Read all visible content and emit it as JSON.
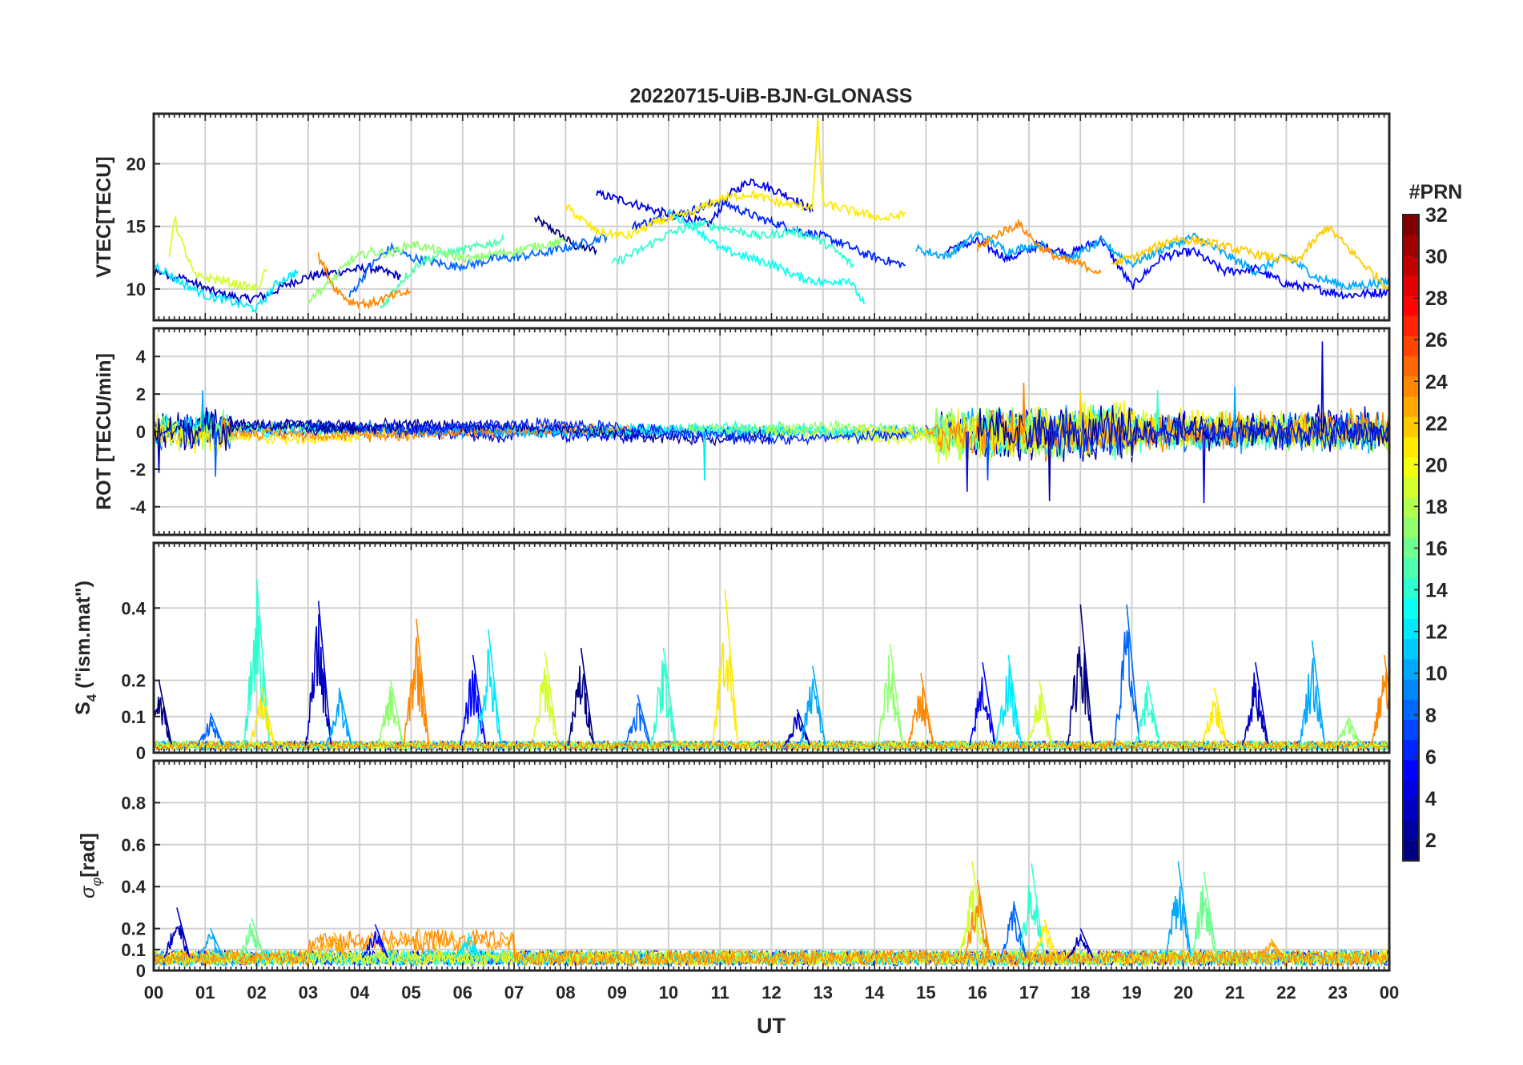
{
  "chart_data": [
    {
      "type": "line",
      "panel": "vtec",
      "title": "20220715-UiB-BJN-GLONASS",
      "ylabel": "VTEC[TECU]",
      "xlabel": "",
      "xlim": [
        0,
        24
      ],
      "ylim": [
        7.5,
        24
      ],
      "yticks": [
        10,
        15,
        20
      ],
      "grid": true,
      "series": [
        {
          "prn": 1,
          "x": [
            7.4,
            7.8,
            8.2,
            8.6
          ],
          "y": [
            15.6,
            14.6,
            13.4,
            13.1
          ]
        },
        {
          "prn": 3,
          "x": [
            0.0,
            0.6,
            1.2,
            1.8,
            2.2,
            2.6,
            3.0,
            3.6,
            4.2,
            4.8
          ],
          "y": [
            11.5,
            10.8,
            9.7,
            9.2,
            9.5,
            10.4,
            11.0,
            11.4,
            11.7,
            11.0
          ]
        },
        {
          "prn": 4,
          "x": [
            8.6,
            9.2,
            9.8,
            10.4,
            10.8,
            11.2,
            11.6,
            12.0,
            12.4,
            12.8
          ],
          "y": [
            17.6,
            17.0,
            16.2,
            15.6,
            15.2,
            17.6,
            18.7,
            18.0,
            17.3,
            16.2
          ]
        },
        {
          "prn": 5,
          "x": [
            15.4,
            16.0,
            16.6,
            17.2,
            17.8,
            18.4,
            19.0,
            19.6,
            20.2,
            20.8,
            21.4,
            22.0,
            22.6,
            23.2,
            24.0
          ],
          "y": [
            13.2,
            13.8,
            12.4,
            13.5,
            12.8,
            14.0,
            10.2,
            12.6,
            13.0,
            11.4,
            11.6,
            10.4,
            10.0,
            9.5,
            9.8
          ]
        },
        {
          "prn": 6,
          "x": [
            9.3,
            9.8,
            10.4,
            11.0,
            11.4,
            11.8,
            12.2,
            12.6,
            13.0,
            13.4,
            13.8,
            14.2,
            14.6
          ],
          "y": [
            15.0,
            15.6,
            16.2,
            17.0,
            16.3,
            15.6,
            15.1,
            14.6,
            14.2,
            13.6,
            12.8,
            12.3,
            11.9
          ]
        },
        {
          "prn": 8,
          "x": [
            3.8,
            4.2,
            4.6,
            5.0,
            5.4,
            5.8,
            6.2,
            6.6,
            7.0,
            7.6,
            8.2,
            8.8
          ],
          "y": [
            9.4,
            11.8,
            13.3,
            12.5,
            12.2,
            11.8,
            12.0,
            12.4,
            12.5,
            12.9,
            13.5,
            14.2
          ]
        },
        {
          "prn": 10,
          "x": [
            14.8,
            15.4,
            16.0,
            16.6,
            17.2,
            17.8,
            18.4,
            19.0,
            19.6,
            20.2,
            20.8,
            21.4,
            22.0,
            22.6,
            23.2,
            24.0
          ],
          "y": [
            13.2,
            12.6,
            14.4,
            13.0,
            13.6,
            12.4,
            13.8,
            12.0,
            13.2,
            14.2,
            12.8,
            11.4,
            12.6,
            10.9,
            10.2,
            10.6
          ]
        },
        {
          "prn": 12,
          "x": [
            0.0,
            0.5,
            1.0,
            1.5,
            2.0,
            2.4,
            2.8
          ],
          "y": [
            12.0,
            10.6,
            9.5,
            9.0,
            8.4,
            10.5,
            11.4
          ]
        },
        {
          "prn": 13,
          "x": [
            10.0,
            10.5,
            11.0,
            11.5,
            12.0,
            12.5,
            13.0,
            13.5,
            13.8
          ],
          "y": [
            16.0,
            15.0,
            13.2,
            12.6,
            12.0,
            11.0,
            10.5,
            10.8,
            8.8
          ]
        },
        {
          "prn": 14,
          "x": [
            8.9,
            9.4,
            10.0,
            10.6,
            11.2,
            11.8,
            12.4,
            12.8,
            13.2,
            13.6
          ],
          "y": [
            12.0,
            13.0,
            14.4,
            15.2,
            14.8,
            14.2,
            14.6,
            14.2,
            13.2,
            11.8
          ]
        },
        {
          "prn": 15,
          "x": [
            4.4,
            4.8,
            5.2,
            5.6,
            6.0,
            6.4,
            6.8
          ],
          "y": [
            8.4,
            10.6,
            12.2,
            12.8,
            13.1,
            13.5,
            13.9
          ]
        },
        {
          "prn": 17,
          "x": [
            3.0,
            3.4,
            3.8,
            4.2,
            4.6,
            5.0,
            5.4,
            5.8,
            6.2,
            6.6,
            7.0,
            7.4,
            8.0
          ],
          "y": [
            9.2,
            10.4,
            12.2,
            13.0,
            12.8,
            13.6,
            13.2,
            12.6,
            12.4,
            12.8,
            13.0,
            13.4,
            13.8
          ]
        },
        {
          "prn": 19,
          "x": [
            0.3,
            0.4,
            0.5,
            0.8,
            1.2,
            1.6,
            2.0,
            2.2
          ],
          "y": [
            12.6,
            15.8,
            14.2,
            11.0,
            10.8,
            10.4,
            10.0,
            11.6
          ]
        },
        {
          "prn": 21,
          "x": [
            8.0,
            8.6,
            9.2,
            9.8,
            10.4,
            11.0,
            11.6,
            12.2,
            12.8,
            12.9,
            13.0,
            13.6,
            14.2,
            14.6
          ],
          "y": [
            16.6,
            14.6,
            14.2,
            15.4,
            16.0,
            17.2,
            17.6,
            16.8,
            16.6,
            23.4,
            16.8,
            16.2,
            15.6,
            16.0
          ]
        },
        {
          "prn": 22,
          "x": [
            18.6,
            19.2,
            19.8,
            20.4,
            21.0,
            21.6,
            22.2,
            22.8,
            23.4,
            24.0
          ],
          "y": [
            12.0,
            12.8,
            14.0,
            13.8,
            13.2,
            12.6,
            12.2,
            15.0,
            12.4,
            10.0
          ]
        },
        {
          "prn": 24,
          "x": [
            3.2,
            3.5,
            3.8,
            4.2,
            4.6,
            5.0
          ],
          "y": [
            12.6,
            10.2,
            9.0,
            8.8,
            9.4,
            9.8
          ]
        },
        {
          "prn": 24,
          "x": [
            16.0,
            16.4,
            16.8,
            17.2,
            17.6,
            18.0,
            18.4
          ],
          "y": [
            13.2,
            14.4,
            15.2,
            13.4,
            12.4,
            12.0,
            11.3
          ]
        }
      ]
    },
    {
      "type": "line",
      "panel": "rot",
      "title": "",
      "ylabel": "ROT [TECU/min]",
      "xlabel": "",
      "xlim": [
        0,
        24
      ],
      "ylim": [
        -5.5,
        5.5
      ],
      "yticks": [
        -4,
        -2,
        0,
        2,
        4
      ],
      "grid": true,
      "noise_model": [
        {
          "from": 0,
          "to": 1.5,
          "amplitude": 0.9
        },
        {
          "from": 1.5,
          "to": 15.2,
          "amplitude": 0.3
        },
        {
          "from": 15.2,
          "to": 19.0,
          "amplitude": 1.1
        },
        {
          "from": 19.0,
          "to": 24.0,
          "amplitude": 0.8
        }
      ],
      "spikes": [
        {
          "x": 0.1,
          "y": -2.2
        },
        {
          "x": 0.95,
          "y": 2.2
        },
        {
          "x": 1.2,
          "y": -2.4
        },
        {
          "x": 10.7,
          "y": -2.6
        },
        {
          "x": 15.8,
          "y": -3.2
        },
        {
          "x": 16.2,
          "y": -2.6
        },
        {
          "x": 16.9,
          "y": 2.6
        },
        {
          "x": 17.4,
          "y": -3.7
        },
        {
          "x": 18.0,
          "y": 2.1
        },
        {
          "x": 20.4,
          "y": -3.8
        },
        {
          "x": 22.7,
          "y": 4.8
        },
        {
          "x": 21.0,
          "y": 2.4
        },
        {
          "x": 19.5,
          "y": 2.2
        }
      ]
    },
    {
      "type": "line",
      "panel": "s4",
      "title": "",
      "ylabel": "S4 (\"ism.mat\")",
      "xlabel": "",
      "xlim": [
        0,
        24
      ],
      "ylim": [
        0,
        0.58
      ],
      "yticks": [
        0,
        0.1,
        0.2,
        0.4
      ],
      "grid": true,
      "baseline": 0.02,
      "peaks": [
        {
          "x": 0.1,
          "y": 0.2
        },
        {
          "x": 1.1,
          "y": 0.11
        },
        {
          "x": 2.0,
          "y": 0.48
        },
        {
          "x": 2.1,
          "y": 0.18
        },
        {
          "x": 3.2,
          "y": 0.42
        },
        {
          "x": 3.6,
          "y": 0.18
        },
        {
          "x": 4.6,
          "y": 0.2
        },
        {
          "x": 5.1,
          "y": 0.37
        },
        {
          "x": 6.2,
          "y": 0.27
        },
        {
          "x": 6.5,
          "y": 0.34
        },
        {
          "x": 7.6,
          "y": 0.28
        },
        {
          "x": 8.3,
          "y": 0.29
        },
        {
          "x": 9.4,
          "y": 0.16
        },
        {
          "x": 9.9,
          "y": 0.29
        },
        {
          "x": 11.1,
          "y": 0.45
        },
        {
          "x": 12.5,
          "y": 0.12
        },
        {
          "x": 12.8,
          "y": 0.24
        },
        {
          "x": 14.3,
          "y": 0.3
        },
        {
          "x": 14.9,
          "y": 0.22
        },
        {
          "x": 16.1,
          "y": 0.25
        },
        {
          "x": 16.6,
          "y": 0.27
        },
        {
          "x": 17.2,
          "y": 0.2
        },
        {
          "x": 18.0,
          "y": 0.41
        },
        {
          "x": 18.9,
          "y": 0.41
        },
        {
          "x": 19.3,
          "y": 0.2
        },
        {
          "x": 20.6,
          "y": 0.18
        },
        {
          "x": 21.4,
          "y": 0.25
        },
        {
          "x": 22.5,
          "y": 0.31
        },
        {
          "x": 23.2,
          "y": 0.1
        },
        {
          "x": 23.9,
          "y": 0.27
        }
      ]
    },
    {
      "type": "line",
      "panel": "sigma_phi",
      "title": "",
      "ylabel": "σφ[rad]",
      "xlabel": "UT",
      "xlim": [
        0,
        24
      ],
      "ylim": [
        0,
        1.0
      ],
      "yticks": [
        0,
        0.1,
        0.2,
        0.4,
        0.6,
        0.8
      ],
      "xticks": [
        "00",
        "01",
        "02",
        "03",
        "04",
        "05",
        "06",
        "07",
        "08",
        "09",
        "10",
        "11",
        "12",
        "13",
        "14",
        "15",
        "16",
        "17",
        "18",
        "19",
        "20",
        "21",
        "22",
        "23",
        "00"
      ],
      "grid": true,
      "baseline": 0.06,
      "peaks": [
        {
          "x": 0.45,
          "y": 0.3
        },
        {
          "x": 1.1,
          "y": 0.2
        },
        {
          "x": 1.9,
          "y": 0.25
        },
        {
          "x": 3.5,
          "y": 0.18
        },
        {
          "x": 4.3,
          "y": 0.22
        },
        {
          "x": 6.1,
          "y": 0.18
        },
        {
          "x": 15.9,
          "y": 0.52
        },
        {
          "x": 16.0,
          "y": 0.43
        },
        {
          "x": 16.7,
          "y": 0.33
        },
        {
          "x": 17.05,
          "y": 0.51
        },
        {
          "x": 17.3,
          "y": 0.24
        },
        {
          "x": 18.0,
          "y": 0.2
        },
        {
          "x": 19.9,
          "y": 0.52
        },
        {
          "x": 20.4,
          "y": 0.47
        },
        {
          "x": 21.7,
          "y": 0.15
        }
      ]
    }
  ],
  "colorbar": {
    "label": "#PRN",
    "ticks": [
      2,
      4,
      6,
      8,
      10,
      12,
      14,
      16,
      18,
      20,
      22,
      24,
      26,
      28,
      30,
      32
    ],
    "range": [
      1,
      32
    ],
    "colormap": "jet"
  }
}
